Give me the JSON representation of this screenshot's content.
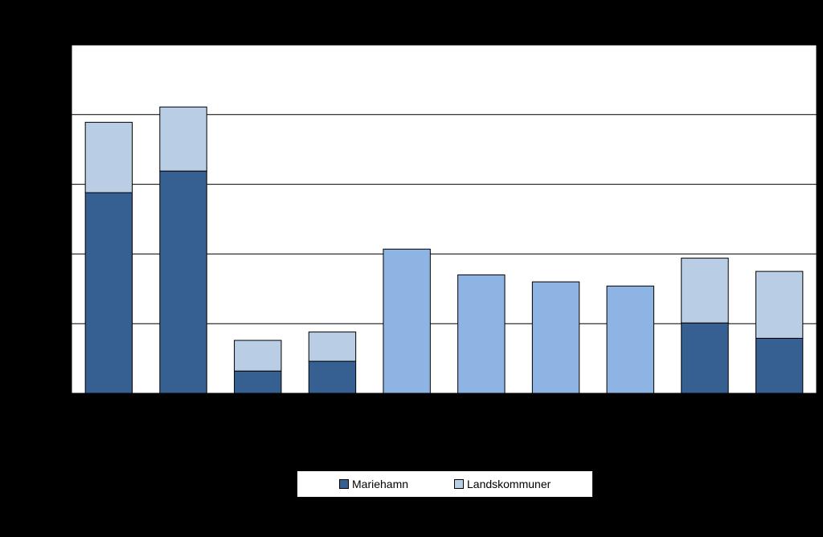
{
  "chart_data": {
    "type": "bar",
    "stacked": true,
    "categories": [
      "",
      "",
      "",
      "",
      "",
      "",
      "",
      "",
      "",
      ""
    ],
    "ylim": [
      0,
      5
    ],
    "grid": true,
    "series": [
      {
        "name": "Mariehamn",
        "color": "#366092",
        "values": [
          2.88,
          3.19,
          0.32,
          0.46,
          0,
          0,
          0,
          0,
          1.01,
          0.79
        ]
      },
      {
        "name": "Landskommuner",
        "color": "#B9CDE5",
        "values": [
          1.01,
          0.92,
          0.44,
          0.42,
          0,
          0,
          0,
          0,
          0.93,
          0.96
        ]
      },
      {
        "name": "",
        "color": "#8DB4E2",
        "values": [
          0,
          0,
          0,
          0,
          2.07,
          1.7,
          1.6,
          1.54,
          0,
          0
        ]
      }
    ],
    "legend": {
      "placement": "bottom",
      "entries": [
        "Mariehamn",
        "Landskommuner"
      ]
    }
  }
}
